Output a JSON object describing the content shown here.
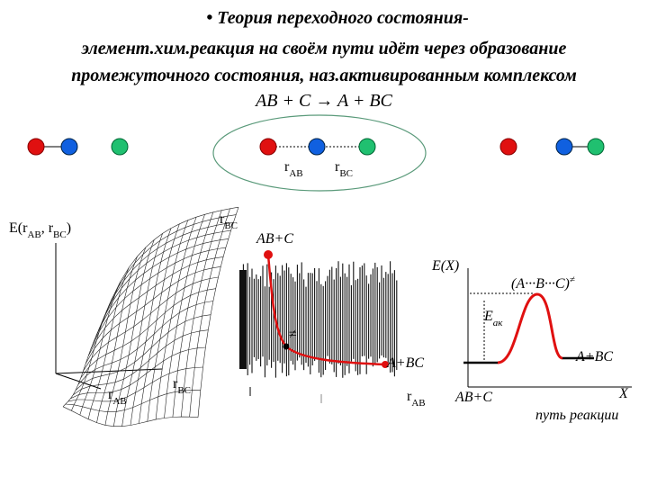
{
  "title": {
    "lines": [
      "• Теория переходного состояния-",
      "элемент.хим.реакция на своём пути идёт через образование",
      "промежуточного состояния, наз.активированным комплексом",
      "AB + C → A + BC"
    ]
  },
  "molecule_labels": [
    [
      {
        "t": "r"
      },
      {
        "t": "AB",
        "sub": true
      }
    ],
    [
      {
        "t": "r"
      },
      {
        "t": "BC",
        "sub": true
      }
    ]
  ],
  "surface_plot": {
    "z_label": [
      {
        "t": "E(r"
      },
      {
        "t": "AB",
        "sub": true
      },
      {
        "t": ", r"
      },
      {
        "t": "BC",
        "sub": true
      },
      {
        "t": ")"
      }
    ],
    "top_label": [
      {
        "t": "r"
      },
      {
        "t": "BC",
        "sub": true
      }
    ],
    "x_label": [
      {
        "t": "r"
      },
      {
        "t": "AB",
        "sub": true
      }
    ],
    "y_label": [
      {
        "t": "r"
      },
      {
        "t": "BC",
        "sub": true
      }
    ]
  },
  "contour_plot": {
    "start_label": "AB+C",
    "end_label": "A+BC",
    "saddle_label": "≠",
    "x_label": [
      {
        "t": "r"
      },
      {
        "t": "AB",
        "sub": true
      }
    ]
  },
  "energy_diagram": {
    "y_label": "E(X)",
    "complex_label": [
      {
        "t": "(A···B···C)"
      },
      {
        "t": "≠",
        "sup": true
      }
    ],
    "activation_label": [
      {
        "t": "E"
      },
      {
        "t": "ак",
        "sub": true
      }
    ],
    "product_label": "A+BC",
    "reactant_label": "AB+C",
    "x_label": "X",
    "x_caption": "путь реакции"
  }
}
